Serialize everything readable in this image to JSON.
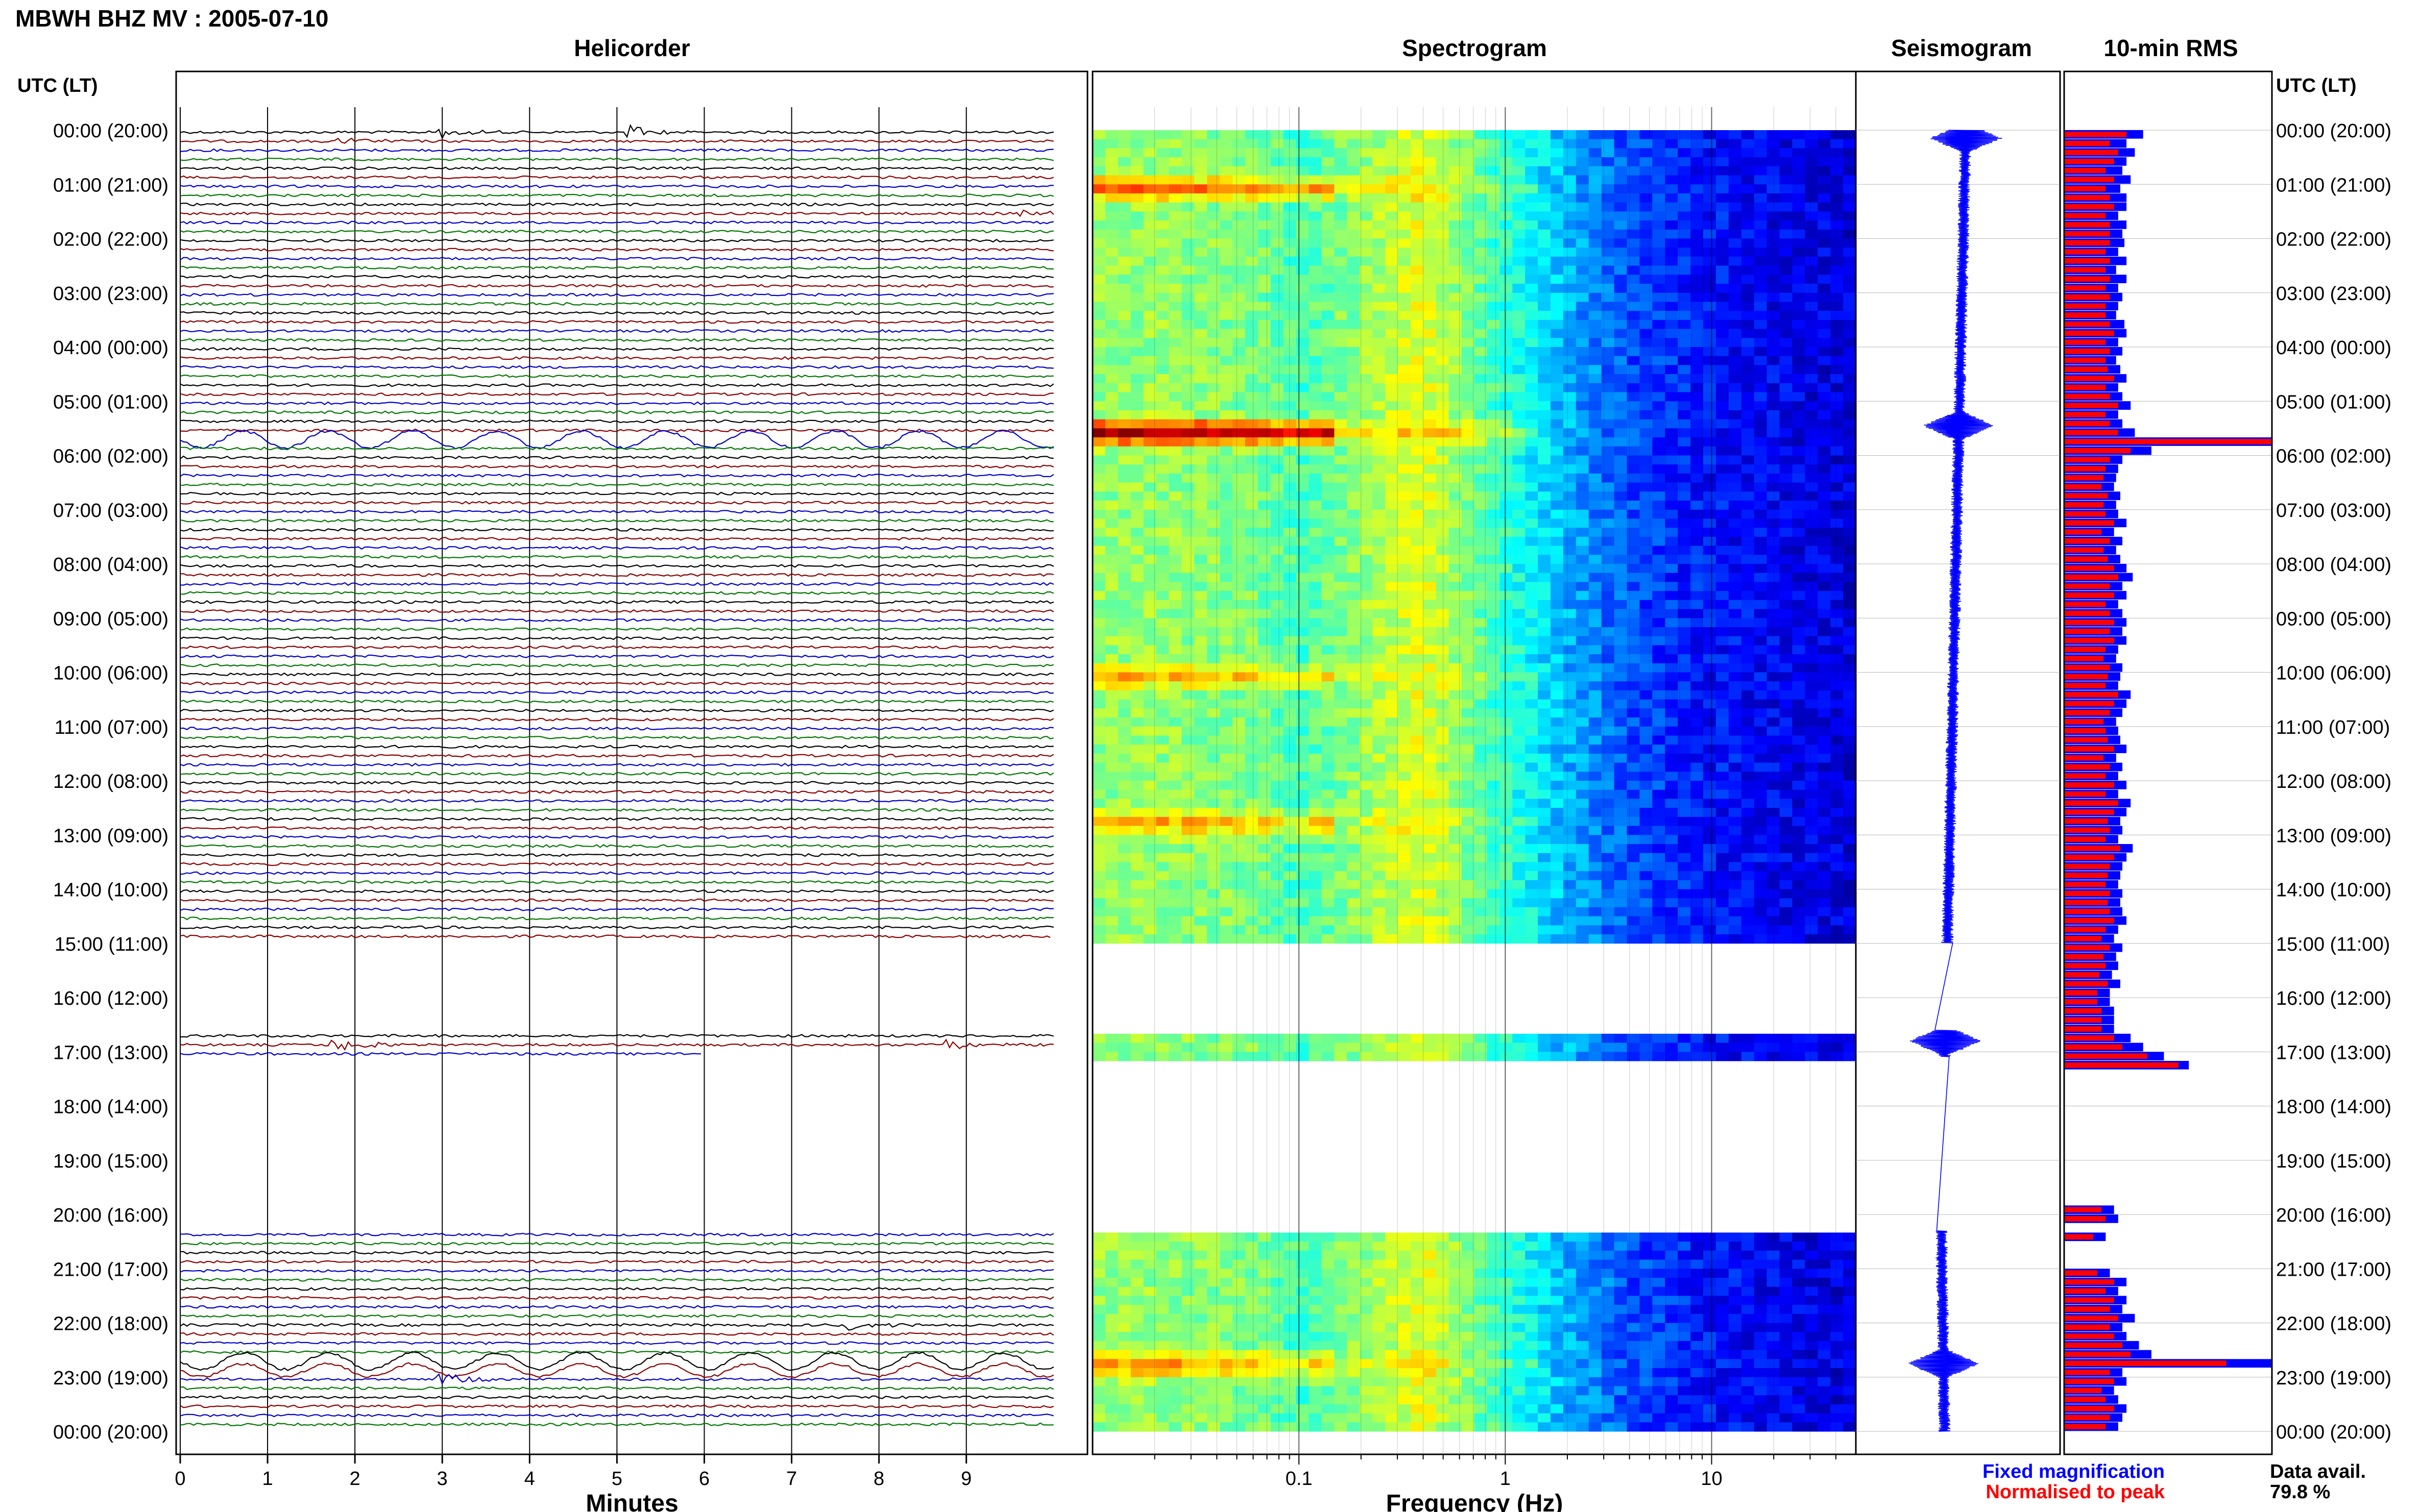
{
  "figure": {
    "title": "MBWH BHZ MV : 2005-07-10",
    "hours_ut_header": "UTC (LT)"
  },
  "colors": {
    "trace_cycle": [
      "#000000",
      "#8b0000",
      "#0000cc",
      "#007700"
    ],
    "fixed_magnification": "#0000ff",
    "normalised_to_peak": "#ff0000",
    "spectrogram_low": "#0019c8",
    "spectrogram_high": "#e00000"
  },
  "chart_data": [
    {
      "type": "line",
      "panel": "helicorder",
      "title": "Helicorder",
      "xlabel": "Minutes",
      "xlim": [
        0,
        10
      ],
      "x_ticks": [
        "0",
        "1",
        "2",
        "3",
        "4",
        "5",
        "6",
        "7",
        "8",
        "9"
      ],
      "rows_per_hour": 6,
      "row_minutes": 10,
      "hour_labels": [
        "00:00 (20:00)",
        "01:00 (21:00)",
        "02:00 (22:00)",
        "03:00 (23:00)",
        "04:00 (00:00)",
        "05:00 (01:00)",
        "06:00 (02:00)",
        "07:00 (03:00)",
        "08:00 (04:00)",
        "09:00 (05:00)",
        "10:00 (06:00)",
        "11:00 (07:00)",
        "12:00 (08:00)",
        "13:00 (09:00)",
        "14:00 (10:00)",
        "15:00 (11:00)",
        "16:00 (12:00)",
        "17:00 (13:00)",
        "18:00 (14:00)",
        "19:00 (15:00)",
        "20:00 (16:00)",
        "21:00 (17:00)",
        "22:00 (18:00)",
        "23:00 (19:00)",
        "00:00 (20:00)"
      ],
      "data_gaps_hours": [
        [
          15.0,
          16.6
        ],
        [
          17.1,
          20.3
        ]
      ],
      "events": [
        {
          "row": 0,
          "minute": 2.9,
          "amplitude": 0.7
        },
        {
          "row": 0,
          "minute": 5.1,
          "amplitude": 0.6
        },
        {
          "row": 1,
          "minute": 1.8,
          "amplitude": 0.3
        },
        {
          "row": 9,
          "minute": 9.6,
          "amplitude": 0.5
        },
        {
          "row": 34,
          "minute": 0.0,
          "amplitude": 0.9,
          "duration": 10
        },
        {
          "row": 101,
          "minute": 1.7,
          "amplitude": 0.8
        },
        {
          "row": 101,
          "minute": 8.7,
          "amplitude": 0.6
        },
        {
          "row": 132,
          "minute": 7.6,
          "amplitude": 0.5
        },
        {
          "row": 136,
          "minute": 0.0,
          "amplitude": 0.9,
          "duration": 10
        },
        {
          "row": 137,
          "minute": 0.0,
          "amplitude": 0.7,
          "duration": 10
        },
        {
          "row": 138,
          "minute": 2.9,
          "amplitude": 0.6
        }
      ]
    },
    {
      "type": "heatmap",
      "panel": "spectrogram",
      "title": "Spectrogram",
      "xlabel": "Frequency (Hz)",
      "x_scale": "log",
      "xlim": [
        0.01,
        50
      ],
      "x_ticks": [
        "0.1",
        "1",
        "10"
      ],
      "colormap": "jet",
      "profile": [
        {
          "freq": 0.02,
          "level": 0.52
        },
        {
          "freq": 0.06,
          "level": 0.5
        },
        {
          "freq": 0.1,
          "level": 0.44
        },
        {
          "freq": 0.2,
          "level": 0.52
        },
        {
          "freq": 0.4,
          "level": 0.6
        },
        {
          "freq": 0.8,
          "level": 0.46
        },
        {
          "freq": 2,
          "level": 0.3
        },
        {
          "freq": 4,
          "level": 0.2
        },
        {
          "freq": 10,
          "level": 0.14
        },
        {
          "freq": 50,
          "level": 0.09
        }
      ],
      "hotspots": [
        {
          "hour": 5.5,
          "level": 0.95
        },
        {
          "hour": 1.0,
          "level": 0.75
        },
        {
          "hour": 12.7,
          "level": 0.7
        },
        {
          "hour": 10.0,
          "level": 0.68
        },
        {
          "hour": 22.7,
          "level": 0.72
        }
      ]
    },
    {
      "type": "line",
      "panel": "seismogram",
      "title": "Seismogram",
      "bursts_hours": [
        0.15,
        5.45,
        16.8,
        22.75
      ]
    },
    {
      "type": "bar",
      "panel": "rms",
      "title": "10-min RMS",
      "orientation": "horizontal",
      "series": [
        {
          "name": "Fixed magnification",
          "color": "#0000ff",
          "values": [
            0.38,
            0.3,
            0.34,
            0.3,
            0.28,
            0.32,
            0.27,
            0.3,
            0.3,
            0.26,
            0.3,
            0.28,
            0.29,
            0.26,
            0.3,
            0.25,
            0.3,
            0.26,
            0.28,
            0.26,
            0.25,
            0.29,
            0.3,
            0.26,
            0.28,
            0.25,
            0.27,
            0.3,
            0.26,
            0.28,
            0.32,
            0.26,
            0.28,
            0.34,
            1.0,
            0.42,
            0.28,
            0.26,
            0.25,
            0.24,
            0.27,
            0.25,
            0.26,
            0.3,
            0.24,
            0.28,
            0.25,
            0.27,
            0.3,
            0.33,
            0.28,
            0.3,
            0.26,
            0.28,
            0.3,
            0.28,
            0.3,
            0.26,
            0.25,
            0.28,
            0.27,
            0.26,
            0.32,
            0.3,
            0.28,
            0.25,
            0.26,
            0.27,
            0.3,
            0.25,
            0.28,
            0.26,
            0.3,
            0.26,
            0.32,
            0.3,
            0.27,
            0.28,
            0.26,
            0.33,
            0.3,
            0.28,
            0.27,
            0.26,
            0.28,
            0.27,
            0.28,
            0.3,
            0.26,
            0.24,
            0.28,
            0.25,
            0.26,
            0.23,
            0.27,
            0.22,
            0.22,
            0.24,
            0.24,
            0.24,
            0.32,
            0.38,
            0.48,
            0.6,
            0.0,
            0.0,
            0.0,
            0.0,
            0.0,
            0.0,
            0.0,
            0.0,
            0.0,
            0.0,
            0.0,
            0.0,
            0.0,
            0.0,
            0.0,
            0.24,
            0.26,
            0.0,
            0.2,
            0.0,
            0.0,
            0.0,
            0.22,
            0.3,
            0.26,
            0.3,
            0.28,
            0.34,
            0.28,
            0.3,
            0.36,
            0.42,
            1.0,
            0.28,
            0.3,
            0.24,
            0.26,
            0.3,
            0.28,
            0.26
          ]
        },
        {
          "name": "Normalised to peak",
          "color": "#ff0000",
          "values": [
            0.3,
            0.22,
            0.26,
            0.24,
            0.2,
            0.24,
            0.2,
            0.22,
            0.24,
            0.2,
            0.22,
            0.22,
            0.22,
            0.2,
            0.22,
            0.2,
            0.22,
            0.2,
            0.22,
            0.2,
            0.2,
            0.22,
            0.24,
            0.2,
            0.22,
            0.2,
            0.21,
            0.24,
            0.2,
            0.22,
            0.26,
            0.2,
            0.22,
            0.26,
            1.0,
            0.32,
            0.22,
            0.2,
            0.19,
            0.18,
            0.21,
            0.19,
            0.2,
            0.24,
            0.18,
            0.22,
            0.19,
            0.21,
            0.24,
            0.26,
            0.22,
            0.24,
            0.2,
            0.22,
            0.24,
            0.22,
            0.24,
            0.2,
            0.19,
            0.22,
            0.21,
            0.2,
            0.26,
            0.24,
            0.22,
            0.19,
            0.2,
            0.21,
            0.24,
            0.19,
            0.22,
            0.2,
            0.24,
            0.2,
            0.26,
            0.24,
            0.21,
            0.22,
            0.2,
            0.27,
            0.24,
            0.22,
            0.21,
            0.2,
            0.22,
            0.21,
            0.22,
            0.24,
            0.2,
            0.18,
            0.22,
            0.19,
            0.2,
            0.17,
            0.21,
            0.16,
            0.16,
            0.18,
            0.18,
            0.18,
            0.24,
            0.28,
            0.4,
            0.55,
            0.0,
            0.0,
            0.0,
            0.0,
            0.0,
            0.0,
            0.0,
            0.0,
            0.0,
            0.0,
            0.0,
            0.0,
            0.0,
            0.0,
            0.0,
            0.18,
            0.2,
            0.0,
            0.14,
            0.0,
            0.0,
            0.0,
            0.16,
            0.24,
            0.2,
            0.24,
            0.22,
            0.26,
            0.22,
            0.24,
            0.28,
            0.32,
            0.78,
            0.22,
            0.24,
            0.18,
            0.2,
            0.24,
            0.22,
            0.2
          ]
        }
      ]
    }
  ],
  "legend": {
    "fixed_label": "Fixed magnification",
    "normalised_label": "Normalised to peak",
    "data_avail_label": "Data avail.",
    "data_avail_value": "79.8 %"
  }
}
